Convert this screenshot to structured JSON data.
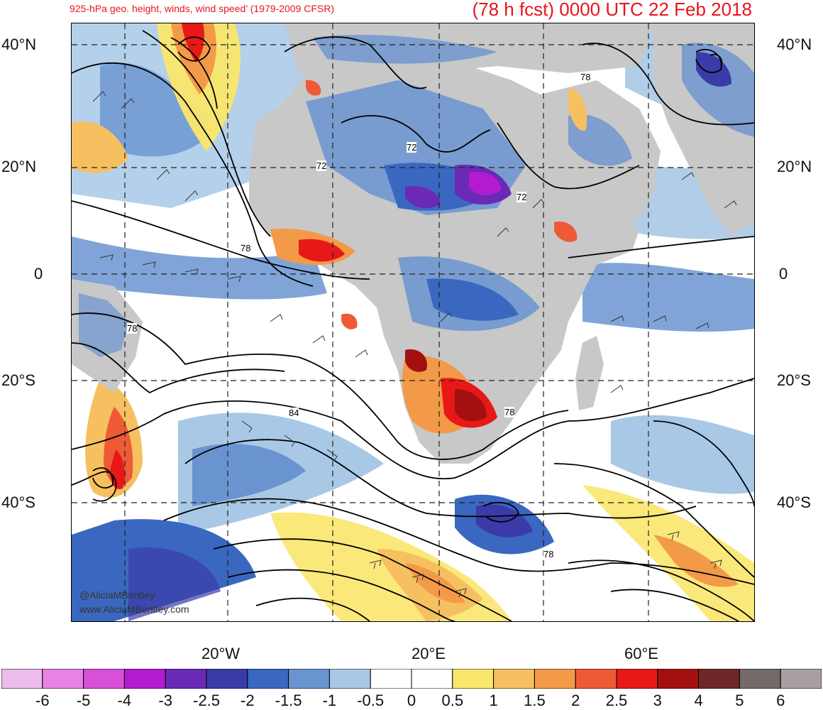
{
  "header": {
    "subtitle": "925-hPa geo. height, winds, wind speed’ (1979-2009 CFSR)",
    "title": "(78 h fcst) 0000 UTC 22 Feb 2018"
  },
  "map": {
    "lat_labels": [
      "40°N",
      "20°N",
      "0",
      "20°S",
      "40°S"
    ],
    "lon_labels": [
      "20°W",
      "20°E",
      "60°E"
    ],
    "contour_labels": [
      "72",
      "72",
      "72",
      "78",
      "78",
      "78",
      "78",
      "78",
      "84"
    ],
    "credit_handle": "@AliciaMBentley",
    "credit_site": "www.AliciaMBentley.com"
  },
  "legend": {
    "labels": [
      "-6",
      "-5",
      "-4",
      "-3",
      "-2.5",
      "-2",
      "-1.5",
      "-1",
      "-0.5",
      "0",
      "0.5",
      "1",
      "1.5",
      "2",
      "2.5",
      "3",
      "4",
      "5",
      "6"
    ],
    "colors": [
      "#ecbcec",
      "#e883e6",
      "#d84fd8",
      "#b21bd2",
      "#6a2ab6",
      "#3a3aa8",
      "#3a68c0",
      "#6a94d0",
      "#a8c8e6",
      "#ffffff",
      "#ffffff",
      "#fbe66c",
      "#f6c060",
      "#f39a48",
      "#ee5a36",
      "#e81818",
      "#a41010",
      "#6e2828",
      "#746a68",
      "#a8a0a0"
    ]
  },
  "colors": {
    "title_red": "#e8141c",
    "land": "#c8c8c8"
  }
}
